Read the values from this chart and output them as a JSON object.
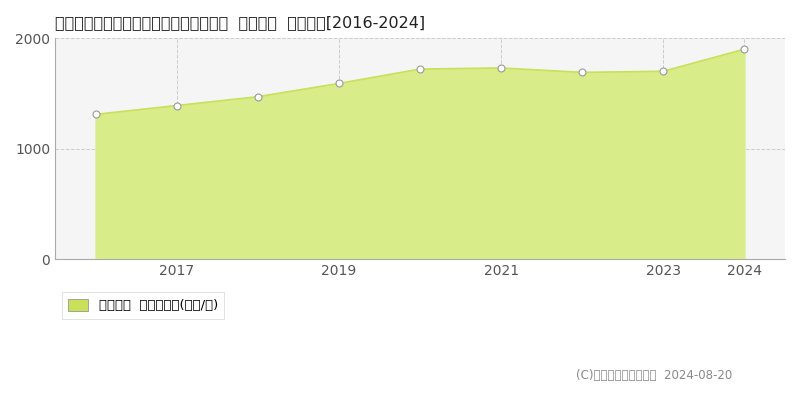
{
  "title": "東京都千代田区神田錦町１丁目６番１外  地価公示  地価推移[2016-2024]",
  "x_points": [
    2016,
    2017,
    2018,
    2019,
    2020,
    2021,
    2022,
    2023,
    2024
  ],
  "y_points": [
    1310,
    1390,
    1470,
    1590,
    1720,
    1730,
    1690,
    1700,
    1900
  ],
  "ylim": [
    0,
    2000
  ],
  "yticks": [
    0,
    1000,
    2000
  ],
  "xticks": [
    2017,
    2019,
    2021,
    2023,
    2024
  ],
  "xlim_left": 2015.5,
  "xlim_right": 2024.5,
  "line_color": "#c8e05a",
  "fill_color": "#d8ed8a",
  "marker_facecolor": "#ffffff",
  "marker_edgecolor": "#999999",
  "bg_color": "#ffffff",
  "plot_bg_color": "#f5f5f5",
  "grid_color": "#cccccc",
  "legend_label": "地価公示  平均坪単価(万円/坪)",
  "legend_color": "#c8e05a",
  "copyright_text": "(C)土地価格ドットコム  2024-08-20",
  "title_fontsize": 11.5,
  "tick_fontsize": 10,
  "legend_fontsize": 9.5,
  "copyright_fontsize": 8.5,
  "spine_color": "#aaaaaa"
}
